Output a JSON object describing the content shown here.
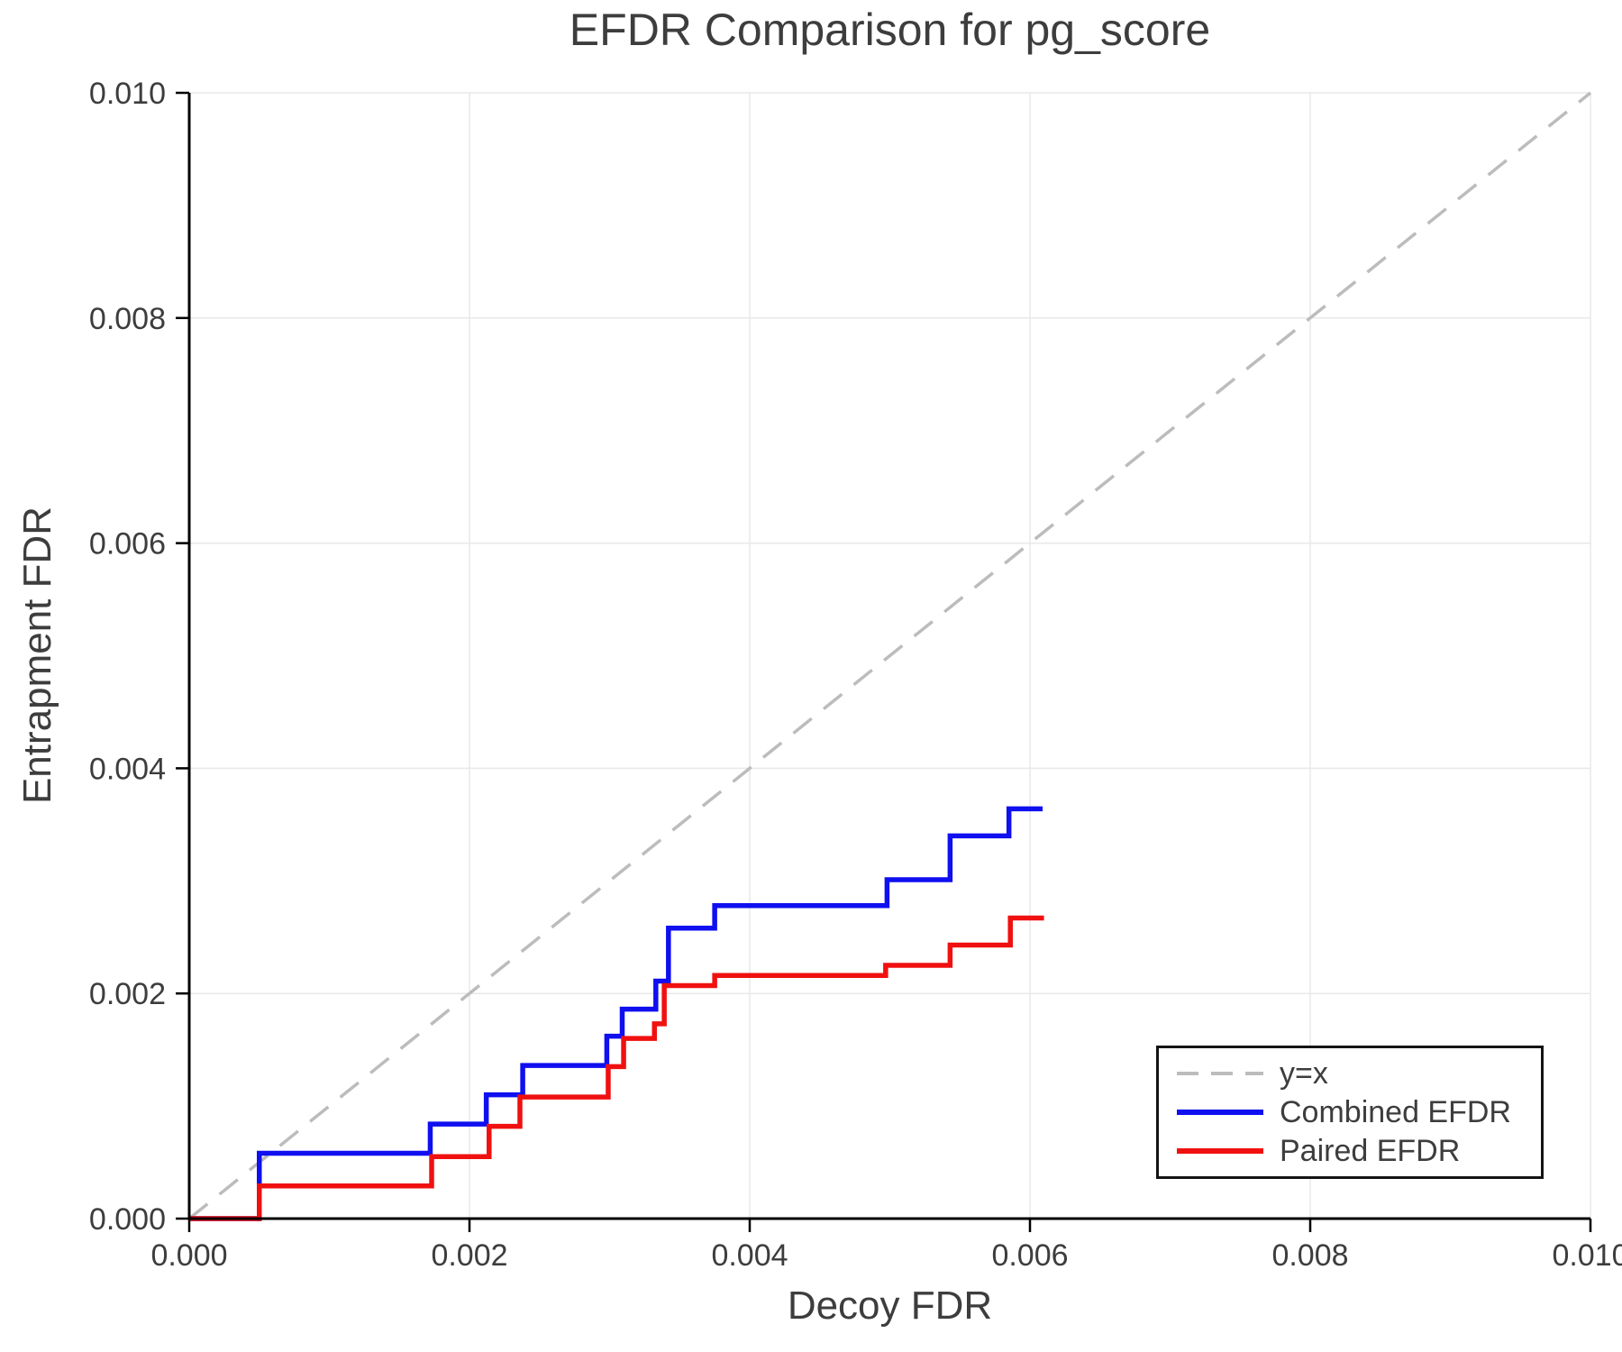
{
  "figure_title": "EFDR Comparison for pg_score",
  "colors": {
    "combined": "#0f0ff0",
    "paired": "#f01010",
    "reference": "#bcbcbc",
    "grid": "#e8e8e8",
    "axis": "#000000",
    "text": "#3d3d3d"
  },
  "chart_data": {
    "type": "line",
    "title": "EFDR Comparison for pg_score",
    "xlabel": "Decoy FDR",
    "ylabel": "Entrapment FDR",
    "xlim": [
      0.0,
      0.01
    ],
    "ylim": [
      0.0,
      0.01
    ],
    "grid": true,
    "legend_position": "lower right",
    "x_tick_values": [
      0.0,
      0.002,
      0.004,
      0.006,
      0.008,
      0.01
    ],
    "x_tick_labels": [
      "0.000",
      "0.002",
      "0.004",
      "0.006",
      "0.008",
      "0.010"
    ],
    "y_tick_values": [
      0.0,
      0.002,
      0.004,
      0.006,
      0.008,
      0.01
    ],
    "y_tick_labels": [
      "0.000",
      "0.002",
      "0.004",
      "0.006",
      "0.008",
      "0.010"
    ],
    "reference_line": {
      "label": "y=x",
      "style": "dashed",
      "color": "#bcbcbc",
      "from": [
        0.0,
        0.0
      ],
      "to": [
        0.01,
        0.01
      ]
    },
    "series": [
      {
        "name": "Combined EFDR",
        "color": "#0f0ff0",
        "style": "step-post",
        "points": [
          [
            0.0,
            0.0
          ],
          [
            0.0005,
            0.00058
          ],
          [
            0.00172,
            0.00084
          ],
          [
            0.00212,
            0.0011
          ],
          [
            0.00238,
            0.00136
          ],
          [
            0.00298,
            0.00162
          ],
          [
            0.00309,
            0.00186
          ],
          [
            0.00333,
            0.00211
          ],
          [
            0.00342,
            0.00258
          ],
          [
            0.00375,
            0.00278
          ],
          [
            0.00498,
            0.00301
          ],
          [
            0.00543,
            0.0034
          ],
          [
            0.00585,
            0.00364
          ],
          [
            0.00609,
            0.00364
          ]
        ]
      },
      {
        "name": "Paired EFDR",
        "color": "#f01010",
        "style": "step-post",
        "points": [
          [
            0.0,
            0.0
          ],
          [
            0.0005,
            0.00029
          ],
          [
            0.00173,
            0.00055
          ],
          [
            0.00214,
            0.00082
          ],
          [
            0.00236,
            0.00108
          ],
          [
            0.00299,
            0.00135
          ],
          [
            0.0031,
            0.0016
          ],
          [
            0.00332,
            0.00173
          ],
          [
            0.00339,
            0.00207
          ],
          [
            0.00375,
            0.00216
          ],
          [
            0.00497,
            0.00225
          ],
          [
            0.00543,
            0.00243
          ],
          [
            0.00586,
            0.00267
          ],
          [
            0.0061,
            0.00267
          ]
        ]
      }
    ]
  },
  "legend": {
    "items": [
      {
        "label": "y=x"
      },
      {
        "label": "Combined EFDR"
      },
      {
        "label": "Paired EFDR"
      }
    ]
  }
}
